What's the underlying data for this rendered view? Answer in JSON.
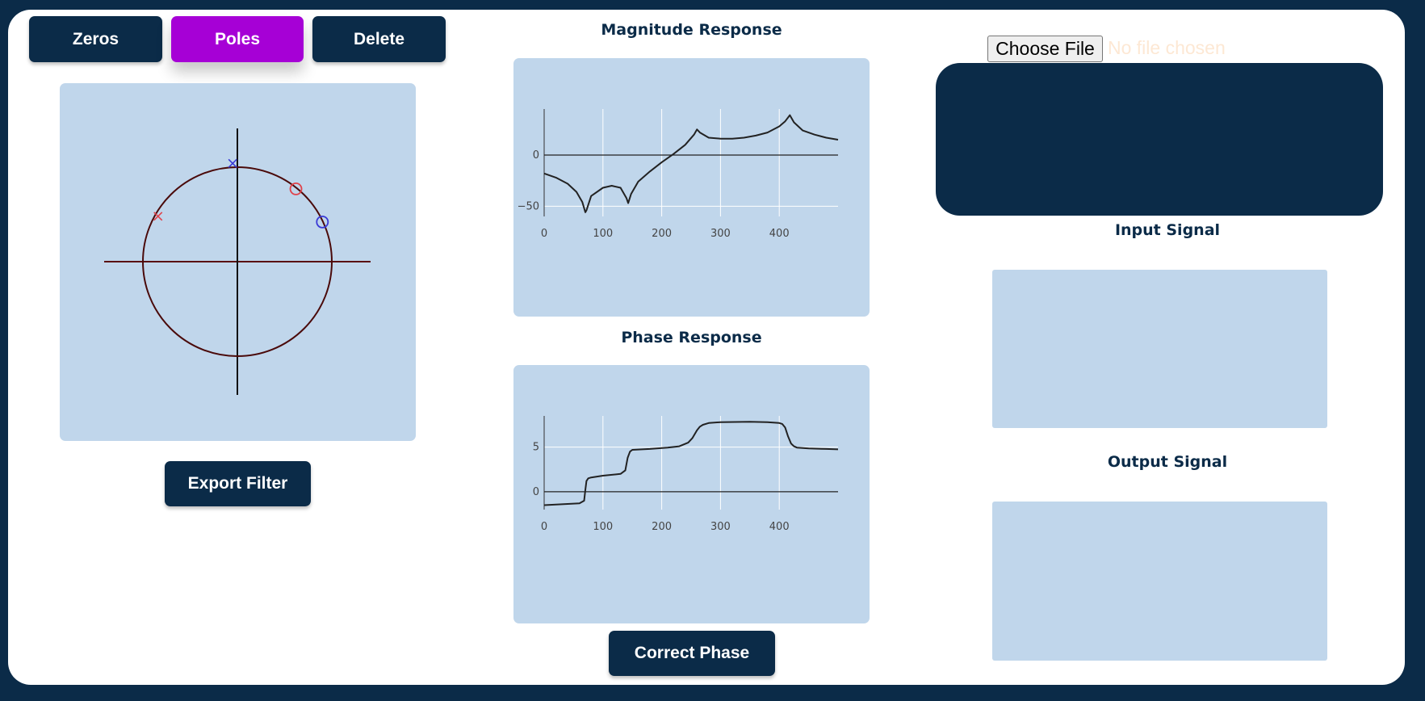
{
  "toolbar": {
    "zeros_label": "Zeros",
    "poles_label": "Poles",
    "delete_label": "Delete",
    "active_mode": "Poles"
  },
  "zplane": {
    "export_label": "Export Filter",
    "zeros": [
      {
        "re": 0.62,
        "im": 0.77
      },
      {
        "re": 0.9,
        "im": 0.42
      }
    ],
    "poles": [
      {
        "re": -0.05,
        "im": 1.04
      },
      {
        "re": -0.84,
        "im": 0.48
      }
    ]
  },
  "magnitude": {
    "title": "Magnitude Response"
  },
  "phase": {
    "title": "Phase Response",
    "correct_label": "Correct Phase"
  },
  "file": {
    "button_label": "Choose File",
    "status": "No file chosen"
  },
  "input_signal": {
    "title": "Input Signal"
  },
  "output_signal": {
    "title": "Output Signal"
  },
  "chart_data": [
    {
      "type": "line",
      "title": "Magnitude Response",
      "x": [
        0,
        20,
        40,
        55,
        65,
        70,
        72,
        80,
        100,
        115,
        130,
        140,
        143,
        148,
        160,
        180,
        200,
        220,
        240,
        255,
        260,
        265,
        280,
        300,
        320,
        340,
        360,
        380,
        400,
        410,
        418,
        425,
        440,
        460,
        480,
        500
      ],
      "y": [
        -18,
        -22,
        -28,
        -36,
        -46,
        -56,
        -54,
        -40,
        -32,
        -30,
        -32,
        -42,
        -47,
        -38,
        -26,
        -16,
        -7,
        1,
        10,
        20,
        25,
        22,
        17,
        16,
        16,
        17,
        19,
        22,
        28,
        33,
        39,
        32,
        24,
        20,
        17,
        15
      ],
      "xticks": [
        0,
        100,
        200,
        300,
        400
      ],
      "yticks": [
        -50,
        0
      ],
      "xlim": [
        0,
        500
      ],
      "ylim": [
        -60,
        45
      ],
      "grid": true
    },
    {
      "type": "line",
      "title": "Phase Response",
      "x": [
        0,
        30,
        60,
        68,
        70,
        72,
        75,
        80,
        100,
        130,
        138,
        142,
        146,
        150,
        180,
        210,
        230,
        245,
        252,
        260,
        265,
        270,
        280,
        300,
        350,
        380,
        400,
        405,
        410,
        415,
        420,
        425,
        430,
        450,
        480,
        500
      ],
      "y": [
        -1.5,
        -1.4,
        -1.3,
        -1.0,
        0.2,
        1.2,
        1.5,
        1.6,
        1.8,
        2.0,
        2.4,
        3.8,
        4.5,
        4.7,
        4.8,
        4.95,
        5.1,
        5.5,
        6.0,
        6.9,
        7.3,
        7.5,
        7.7,
        7.8,
        7.85,
        7.8,
        7.7,
        7.6,
        7.2,
        6.2,
        5.4,
        5.1,
        4.95,
        4.85,
        4.8,
        4.75
      ],
      "xticks": [
        0,
        100,
        200,
        300,
        400
      ],
      "yticks": [
        0,
        5
      ],
      "xlim": [
        0,
        500
      ],
      "ylim": [
        -2,
        8.5
      ],
      "grid": true
    }
  ]
}
